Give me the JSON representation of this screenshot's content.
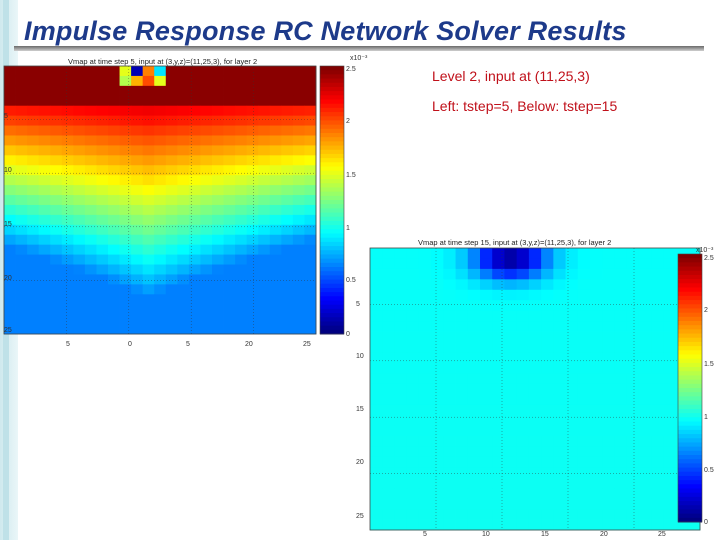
{
  "slide": {
    "title": "Impulse Response RC Network Solver Results",
    "note1": "Level 2, input at (11,25,3)",
    "note2": "Left: tstep=5,  Below: tstep=15"
  },
  "plot1": {
    "title": "Vmap at time step 5, input at (3,y,z)=(11,25,3), for layer 2",
    "xticks": [
      "5",
      "0",
      "5",
      "20",
      "25"
    ],
    "yticks": [
      "5",
      "10",
      "15",
      "20",
      "25"
    ],
    "colorbar_exp": "x10⁻³",
    "cbticks": [
      "2.5",
      "2",
      "1.5",
      "1",
      "0.5",
      "0"
    ]
  },
  "plot2": {
    "title": "Vmap at time step 15, input at (3,y,z)=(11,25,3), for layer 2",
    "xticks": [
      "5",
      "10",
      "15",
      "20",
      "25"
    ],
    "yticks": [
      "5",
      "10",
      "15",
      "20",
      "25"
    ],
    "colorbar_exp": "x10⁻³",
    "cbticks": [
      "2.5",
      "2",
      "1.5",
      "1",
      "0.5",
      "0"
    ]
  },
  "colors": {
    "title": "#1d3a8a",
    "note": "#c0101a"
  }
}
